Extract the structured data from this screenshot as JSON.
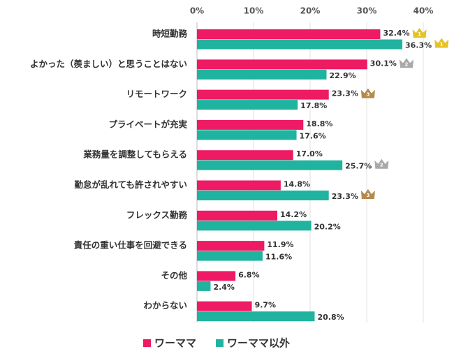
{
  "chart_data": {
    "type": "hbar",
    "categories": [
      "時短勤務",
      "よかった（羨ましい）と思うことはない",
      "リモートワーク",
      "プライベートが充実",
      "業務量を調整してもらえる",
      "勤怠が乱れても許されやすい",
      "フレックス勤務",
      "責任の重い仕事を回避できる",
      "その他",
      "わからない"
    ],
    "series": [
      {
        "name": "ワーママ",
        "color": "#ee1a64",
        "values": [
          32.4,
          30.1,
          23.3,
          18.8,
          17.0,
          14.8,
          14.2,
          11.9,
          6.8,
          9.7
        ],
        "value_labels": [
          "32.4%",
          "30.1%",
          "23.3%",
          "18.8%",
          "17.0%",
          "14.8%",
          "14.2%",
          "11.9%",
          "6.8%",
          "9.7%"
        ],
        "ranks": [
          1,
          2,
          3,
          null,
          null,
          null,
          null,
          null,
          null,
          null
        ]
      },
      {
        "name": "ワーママ以外",
        "color": "#20b39f",
        "values": [
          36.3,
          22.9,
          17.8,
          17.6,
          25.7,
          23.3,
          20.2,
          11.6,
          2.4,
          20.8
        ],
        "value_labels": [
          "36.3%",
          "22.9%",
          "17.8%",
          "17.6%",
          "25.7%",
          "23.3%",
          "20.2%",
          "11.6%",
          "2.4%",
          "20.8%"
        ],
        "ranks": [
          1,
          null,
          null,
          null,
          2,
          3,
          null,
          null,
          null,
          null
        ]
      }
    ],
    "xlim": [
      0,
      40
    ],
    "xticks": [
      {
        "value": 0,
        "label": "0%"
      },
      {
        "value": 10,
        "label": "10%"
      },
      {
        "value": 20,
        "label": "20%"
      },
      {
        "value": 30,
        "label": "30%"
      },
      {
        "value": 40,
        "label": "40%"
      }
    ],
    "grid": true
  }
}
